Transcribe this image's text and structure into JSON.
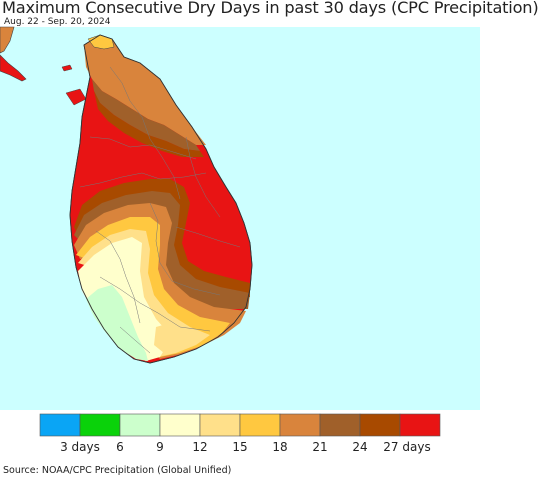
{
  "header": {
    "title": "Maximum Consecutive Dry Days in past 30 days (CPC Precipitation)",
    "date_range": "Aug. 22 - Sep. 20, 2024"
  },
  "map": {
    "ocean_color": "#ccffff",
    "region": "Sri Lanka"
  },
  "legend": {
    "colors": [
      "#0aa5f5",
      "#0ad20a",
      "#ccffcc",
      "#ffffcc",
      "#ffe08a",
      "#ffc840",
      "#d9843c",
      "#a0602a",
      "#a84a00",
      "#e81414"
    ],
    "tick_labels": [
      "3 days",
      "6",
      "9",
      "12",
      "15",
      "18",
      "21",
      "24",
      "27 days"
    ]
  },
  "footer": {
    "source": "Source: NOAA/CPC Precipitation (Global Unified)"
  }
}
